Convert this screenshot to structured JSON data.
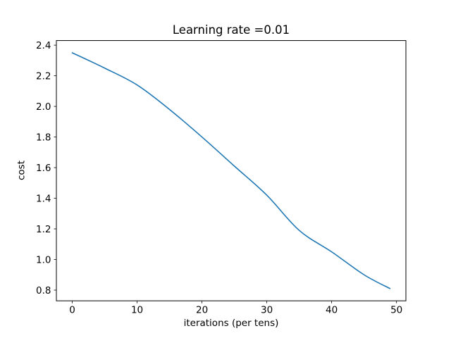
{
  "figure": {
    "background": "#ffffff"
  },
  "chart_data": {
    "type": "line",
    "title": "Learning rate =0.01",
    "xlabel": "iterations (per tens)",
    "ylabel": "cost",
    "x": [
      0,
      5,
      10,
      15,
      20,
      25,
      30,
      35,
      40,
      45,
      49
    ],
    "y": [
      2.35,
      2.25,
      2.14,
      1.98,
      1.8,
      1.61,
      1.42,
      1.19,
      1.05,
      0.9,
      0.81
    ],
    "xlim": [
      -2.45,
      51.45
    ],
    "ylim": [
      0.73,
      2.43
    ],
    "xticks": [
      0,
      10,
      20,
      30,
      40,
      50
    ],
    "xtick_labels": [
      "0",
      "10",
      "20",
      "30",
      "40",
      "50"
    ],
    "yticks": [
      0.8,
      1.0,
      1.2,
      1.4,
      1.6,
      1.8,
      2.0,
      2.2,
      2.4
    ],
    "ytick_labels": [
      "0.8",
      "1.0",
      "1.2",
      "1.4",
      "1.6",
      "1.8",
      "2.0",
      "2.2",
      "2.4"
    ],
    "line_color": "#1f77b4",
    "spine_color": "#000000",
    "text_color": "#000000",
    "grid": false,
    "legend": null
  }
}
